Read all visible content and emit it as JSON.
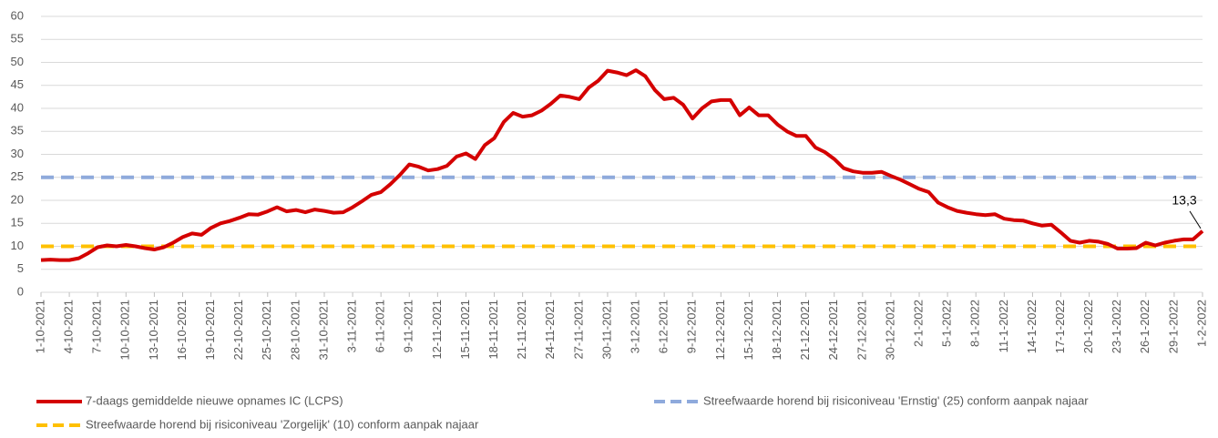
{
  "chart_data": {
    "type": "line",
    "categories": [
      "1-10-2021",
      null,
      null,
      "4-10-2021",
      null,
      null,
      "7-10-2021",
      null,
      null,
      "10-10-2021",
      null,
      null,
      "13-10-2021",
      null,
      null,
      "16-10-2021",
      null,
      null,
      "19-10-2021",
      null,
      null,
      "22-10-2021",
      null,
      null,
      "25-10-2021",
      null,
      null,
      "28-10-2021",
      null,
      null,
      "31-10-2021",
      null,
      null,
      "3-11-2021",
      null,
      null,
      "6-11-2021",
      null,
      null,
      "9-11-2021",
      null,
      null,
      "12-11-2021",
      null,
      null,
      "15-11-2021",
      null,
      null,
      "18-11-2021",
      null,
      null,
      "21-11-2021",
      null,
      null,
      "24-11-2021",
      null,
      null,
      "27-11-2021",
      null,
      null,
      "30-11-2021",
      null,
      null,
      "3-12-2021",
      null,
      null,
      "6-12-2021",
      null,
      null,
      "9-12-2021",
      null,
      null,
      "12-12-2021",
      null,
      null,
      "15-12-2021",
      null,
      null,
      "18-12-2021",
      null,
      null,
      "21-12-2021",
      null,
      null,
      "24-12-2021",
      null,
      null,
      "27-12-2021",
      null,
      null,
      "30-12-2021",
      null,
      null,
      "2-1-2022",
      null,
      null,
      "5-1-2022",
      null,
      null,
      "8-1-2022",
      null,
      null,
      "11-1-2022",
      null,
      null,
      "14-1-2022",
      null,
      null,
      "17-1-2022",
      null,
      null,
      "20-1-2022",
      null,
      null,
      "23-1-2022",
      null,
      null,
      "26-1-2022",
      null,
      null,
      "29-1-2022",
      null,
      null,
      "1-2-2022"
    ],
    "series": [
      {
        "name": "7-daags gemiddelde nieuwe opnames IC (LCPS)",
        "color": "#d40000",
        "values": [
          7.0,
          7.1,
          7.0,
          7.0,
          7.4,
          8.5,
          9.8,
          10.2,
          10.0,
          10.3,
          10.0,
          9.6,
          9.3,
          9.8,
          10.8,
          12.0,
          12.8,
          12.5,
          14.0,
          15.0,
          15.5,
          16.2,
          17.0,
          16.9,
          17.6,
          18.5,
          17.6,
          17.9,
          17.4,
          18.0,
          17.7,
          17.3,
          17.4,
          18.5,
          19.8,
          21.2,
          21.8,
          23.5,
          25.5,
          27.8,
          27.3,
          26.5,
          26.8,
          27.5,
          29.5,
          30.2,
          29.0,
          32.0,
          33.5,
          37.0,
          39.0,
          38.2,
          38.5,
          39.5,
          41.0,
          42.8,
          42.5,
          42.0,
          44.5,
          46.0,
          48.2,
          47.8,
          47.2,
          48.3,
          47.0,
          44.0,
          42.0,
          42.3,
          40.8,
          37.8,
          40.0,
          41.5,
          41.8,
          41.8,
          38.5,
          40.2,
          38.5,
          38.5,
          36.5,
          35.0,
          34.0,
          34.0,
          31.5,
          30.5,
          29.0,
          27.0,
          26.3,
          26.0,
          26.0,
          26.2,
          25.3,
          24.5,
          23.5,
          22.5,
          21.8,
          19.5,
          18.5,
          17.7,
          17.3,
          17.0,
          16.8,
          17.0,
          16.0,
          15.7,
          15.6,
          15.0,
          14.5,
          14.7,
          13.0,
          11.2,
          10.8,
          11.2,
          11.0,
          10.5,
          9.5,
          9.5,
          9.6,
          10.8,
          10.2,
          10.8,
          11.2,
          11.5,
          11.5,
          13.3
        ],
        "value_labels": [
          null,
          null,
          null,
          null,
          null,
          null,
          null,
          null,
          null,
          null,
          null,
          null,
          null,
          null,
          null,
          null,
          null,
          null,
          null,
          null,
          null,
          null,
          null,
          null,
          null,
          null,
          null,
          null,
          null,
          null,
          null,
          null,
          null,
          null,
          null,
          null,
          null,
          null,
          null,
          null,
          null,
          null,
          null,
          null,
          null,
          null,
          null,
          null,
          null,
          null,
          null,
          null,
          null,
          null,
          null,
          null,
          null,
          null,
          null,
          null,
          null,
          null,
          null,
          null,
          null,
          null,
          null,
          null,
          null,
          null,
          null,
          null,
          null,
          null,
          null,
          null,
          null,
          null,
          null,
          null,
          null,
          null,
          null,
          null,
          null,
          null,
          null,
          null,
          null,
          null,
          null,
          null,
          null,
          null,
          null,
          null,
          null,
          null,
          null,
          null,
          null,
          null,
          null,
          null,
          null,
          null,
          null,
          null,
          null,
          null,
          null,
          null,
          null,
          null,
          null,
          null,
          null,
          null,
          null,
          null,
          null,
          null,
          null,
          "13,3"
        ]
      }
    ],
    "reference_lines": [
      {
        "name": "Streefwaarde horend bij risiconiveau 'Ernstig' (25) conform aanpak najaar",
        "value": 25,
        "color": "#8faadc"
      },
      {
        "name": "Streefwaarde horend bij risiconiveau 'Zorgelijk' (10) conform aanpak najaar",
        "value": 10,
        "color": "#ffc000"
      }
    ],
    "ylim": [
      0,
      60
    ],
    "yticks": [
      0,
      5,
      10,
      15,
      20,
      25,
      30,
      35,
      40,
      45,
      50,
      55,
      60
    ],
    "grid": true
  }
}
